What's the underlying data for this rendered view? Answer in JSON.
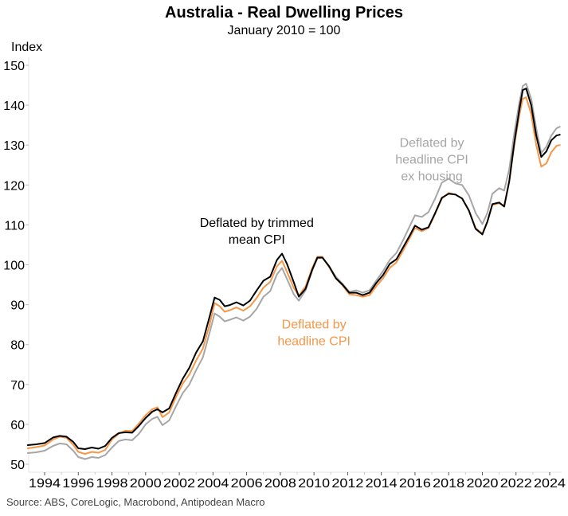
{
  "chart_data": {
    "type": "line",
    "title": "Australia - Real Dwelling Prices",
    "subtitle": "January 2010 = 100",
    "ylabel": "Index",
    "xlabel": "",
    "source": "Source: ABS, CoreLogic, Macrobond, Antipodean Macro",
    "xlim": [
      1993.0,
      2024.7
    ],
    "ylim": [
      48,
      150
    ],
    "yticks": [
      50,
      60,
      70,
      80,
      90,
      100,
      110,
      120,
      130,
      140,
      150
    ],
    "xticks": [
      1994,
      1996,
      1998,
      2000,
      2002,
      2004,
      2006,
      2008,
      2010,
      2012,
      2014,
      2016,
      2018,
      2020,
      2022,
      2024
    ],
    "grid": false,
    "legend": "inline annotations",
    "series": [
      {
        "name": "Deflated by headline CPI ex housing",
        "color": "#a6a6a6",
        "annotation": {
          "lines": [
            "Deflated by",
            "headline CPI",
            "ex housing"
          ],
          "at": [
            2017.0,
            129.5
          ]
        },
        "points": [
          [
            1993.0,
            52.8
          ],
          [
            1993.5,
            53.0
          ],
          [
            1994.0,
            53.4
          ],
          [
            1994.5,
            54.6
          ],
          [
            1994.9,
            55.2
          ],
          [
            1995.3,
            55.0
          ],
          [
            1995.7,
            53.4
          ],
          [
            1996.0,
            51.8
          ],
          [
            1996.4,
            51.3
          ],
          [
            1996.8,
            51.8
          ],
          [
            1997.2,
            51.6
          ],
          [
            1997.6,
            52.3
          ],
          [
            1998.0,
            54.2
          ],
          [
            1998.4,
            55.8
          ],
          [
            1998.8,
            56.2
          ],
          [
            1999.2,
            56.0
          ],
          [
            1999.6,
            57.6
          ],
          [
            2000.0,
            60.0
          ],
          [
            2000.4,
            61.4
          ],
          [
            2000.7,
            61.9
          ],
          [
            2001.0,
            59.8
          ],
          [
            2001.4,
            61.0
          ],
          [
            2001.8,
            64.5
          ],
          [
            2002.2,
            67.8
          ],
          [
            2002.6,
            70.0
          ],
          [
            2003.0,
            73.6
          ],
          [
            2003.4,
            76.8
          ],
          [
            2003.8,
            83.0
          ],
          [
            2004.1,
            87.8
          ],
          [
            2004.4,
            87.0
          ],
          [
            2004.7,
            85.8
          ],
          [
            2005.0,
            86.2
          ],
          [
            2005.4,
            86.8
          ],
          [
            2005.8,
            86.0
          ],
          [
            2006.2,
            87.0
          ],
          [
            2006.6,
            89.0
          ],
          [
            2007.0,
            92.0
          ],
          [
            2007.4,
            93.4
          ],
          [
            2007.8,
            97.6
          ],
          [
            2008.1,
            99.2
          ],
          [
            2008.4,
            96.4
          ],
          [
            2008.8,
            92.6
          ],
          [
            2009.1,
            91.0
          ],
          [
            2009.5,
            93.6
          ],
          [
            2009.9,
            98.6
          ],
          [
            2010.2,
            101.6
          ],
          [
            2010.5,
            101.8
          ],
          [
            2010.9,
            99.6
          ],
          [
            2011.3,
            97.0
          ],
          [
            2011.7,
            95.2
          ],
          [
            2012.1,
            93.2
          ],
          [
            2012.5,
            93.6
          ],
          [
            2012.9,
            93.0
          ],
          [
            2013.3,
            93.6
          ],
          [
            2013.7,
            96.0
          ],
          [
            2014.1,
            98.4
          ],
          [
            2014.5,
            101.2
          ],
          [
            2014.9,
            103.0
          ],
          [
            2015.3,
            106.2
          ],
          [
            2015.7,
            109.8
          ],
          [
            2016.0,
            112.4
          ],
          [
            2016.4,
            112.0
          ],
          [
            2016.8,
            113.2
          ],
          [
            2017.2,
            116.6
          ],
          [
            2017.6,
            120.6
          ],
          [
            2018.0,
            121.6
          ],
          [
            2018.4,
            120.4
          ],
          [
            2018.8,
            120.0
          ],
          [
            2019.2,
            117.4
          ],
          [
            2019.6,
            113.0
          ],
          [
            2020.0,
            110.2
          ],
          [
            2020.3,
            113.0
          ],
          [
            2020.6,
            117.8
          ],
          [
            2021.0,
            119.2
          ],
          [
            2021.3,
            118.6
          ],
          [
            2021.6,
            124.0
          ],
          [
            2021.9,
            133.0
          ],
          [
            2022.2,
            140.8
          ],
          [
            2022.4,
            144.8
          ],
          [
            2022.6,
            145.4
          ],
          [
            2022.9,
            141.6
          ],
          [
            2023.2,
            134.2
          ],
          [
            2023.5,
            128.0
          ],
          [
            2023.8,
            129.6
          ],
          [
            2024.1,
            132.4
          ],
          [
            2024.4,
            134.2
          ],
          [
            2024.6,
            134.6
          ]
        ]
      },
      {
        "name": "Deflated by headline CPI",
        "color": "#f79646",
        "annotation": {
          "lines": [
            "Deflated by",
            "headline CPI"
          ],
          "at": [
            2010.0,
            84.0
          ]
        },
        "points": [
          [
            1993.0,
            54.0
          ],
          [
            1993.5,
            54.3
          ],
          [
            1994.0,
            54.7
          ],
          [
            1994.5,
            56.2
          ],
          [
            1994.9,
            56.9
          ],
          [
            1995.3,
            56.6
          ],
          [
            1995.7,
            54.9
          ],
          [
            1996.0,
            53.1
          ],
          [
            1996.4,
            52.6
          ],
          [
            1996.8,
            53.1
          ],
          [
            1997.2,
            52.9
          ],
          [
            1997.6,
            53.6
          ],
          [
            1998.0,
            56.2
          ],
          [
            1998.4,
            57.6
          ],
          [
            1998.8,
            58.4
          ],
          [
            1999.2,
            58.3
          ],
          [
            1999.6,
            60.2
          ],
          [
            2000.0,
            62.3
          ],
          [
            2000.4,
            63.8
          ],
          [
            2000.7,
            64.3
          ],
          [
            2001.0,
            61.8
          ],
          [
            2001.4,
            63.0
          ],
          [
            2001.8,
            66.8
          ],
          [
            2002.2,
            70.2
          ],
          [
            2002.6,
            72.5
          ],
          [
            2003.0,
            76.0
          ],
          [
            2003.4,
            79.0
          ],
          [
            2003.8,
            85.0
          ],
          [
            2004.1,
            90.4
          ],
          [
            2004.4,
            89.6
          ],
          [
            2004.7,
            88.2
          ],
          [
            2005.0,
            88.6
          ],
          [
            2005.4,
            89.3
          ],
          [
            2005.8,
            88.5
          ],
          [
            2006.2,
            89.6
          ],
          [
            2006.6,
            91.7
          ],
          [
            2007.0,
            94.3
          ],
          [
            2007.4,
            95.7
          ],
          [
            2007.8,
            99.6
          ],
          [
            2008.1,
            101.0
          ],
          [
            2008.4,
            98.2
          ],
          [
            2008.8,
            94.2
          ],
          [
            2009.1,
            92.3
          ],
          [
            2009.5,
            94.6
          ],
          [
            2009.9,
            99.2
          ],
          [
            2010.2,
            102.0
          ],
          [
            2010.5,
            102.0
          ],
          [
            2010.9,
            99.4
          ],
          [
            2011.3,
            96.6
          ],
          [
            2011.7,
            94.8
          ],
          [
            2012.1,
            92.6
          ],
          [
            2012.5,
            92.4
          ],
          [
            2012.9,
            92.0
          ],
          [
            2013.3,
            92.4
          ],
          [
            2013.7,
            94.6
          ],
          [
            2014.1,
            96.6
          ],
          [
            2014.5,
            99.2
          ],
          [
            2014.9,
            100.6
          ],
          [
            2015.3,
            103.6
          ],
          [
            2015.7,
            106.8
          ],
          [
            2016.0,
            109.2
          ],
          [
            2016.4,
            108.4
          ],
          [
            2016.8,
            109.2
          ],
          [
            2017.2,
            112.8
          ],
          [
            2017.6,
            116.6
          ],
          [
            2018.0,
            118.0
          ],
          [
            2018.4,
            117.6
          ],
          [
            2018.8,
            116.6
          ],
          [
            2019.2,
            113.6
          ],
          [
            2019.6,
            109.2
          ],
          [
            2020.0,
            107.8
          ],
          [
            2020.3,
            110.8
          ],
          [
            2020.6,
            115.0
          ],
          [
            2021.0,
            115.4
          ],
          [
            2021.3,
            114.8
          ],
          [
            2021.6,
            121.0
          ],
          [
            2021.9,
            130.0
          ],
          [
            2022.2,
            137.6
          ],
          [
            2022.4,
            141.6
          ],
          [
            2022.6,
            142.0
          ],
          [
            2022.9,
            137.8
          ],
          [
            2023.2,
            130.0
          ],
          [
            2023.5,
            124.6
          ],
          [
            2023.8,
            125.4
          ],
          [
            2024.1,
            128.2
          ],
          [
            2024.4,
            129.8
          ],
          [
            2024.6,
            130.0
          ]
        ]
      },
      {
        "name": "Deflated by trimmed mean CPI",
        "color": "#000000",
        "annotation": {
          "lines": [
            "Deflated by trimmed",
            "mean CPI"
          ],
          "at": [
            2006.6,
            109.5
          ]
        },
        "points": [
          [
            1993.0,
            54.8
          ],
          [
            1993.5,
            55.0
          ],
          [
            1994.0,
            55.3
          ],
          [
            1994.5,
            56.7
          ],
          [
            1994.9,
            57.1
          ],
          [
            1995.3,
            56.9
          ],
          [
            1995.7,
            55.6
          ],
          [
            1996.0,
            54.0
          ],
          [
            1996.4,
            53.8
          ],
          [
            1996.8,
            54.2
          ],
          [
            1997.2,
            53.9
          ],
          [
            1997.6,
            54.6
          ],
          [
            1998.0,
            56.6
          ],
          [
            1998.4,
            57.8
          ],
          [
            1998.8,
            58.0
          ],
          [
            1999.2,
            57.9
          ],
          [
            1999.6,
            59.6
          ],
          [
            2000.0,
            61.6
          ],
          [
            2000.4,
            63.2
          ],
          [
            2000.7,
            63.8
          ],
          [
            2001.0,
            63.0
          ],
          [
            2001.4,
            64.0
          ],
          [
            2001.8,
            67.8
          ],
          [
            2002.2,
            71.4
          ],
          [
            2002.6,
            74.2
          ],
          [
            2003.0,
            78.0
          ],
          [
            2003.4,
            80.8
          ],
          [
            2003.8,
            87.0
          ],
          [
            2004.1,
            91.8
          ],
          [
            2004.4,
            91.2
          ],
          [
            2004.7,
            89.6
          ],
          [
            2005.0,
            89.9
          ],
          [
            2005.4,
            90.6
          ],
          [
            2005.8,
            89.8
          ],
          [
            2006.2,
            91.0
          ],
          [
            2006.6,
            93.6
          ],
          [
            2007.0,
            96.0
          ],
          [
            2007.4,
            97.0
          ],
          [
            2007.8,
            101.2
          ],
          [
            2008.1,
            102.8
          ],
          [
            2008.4,
            100.2
          ],
          [
            2008.8,
            95.6
          ],
          [
            2009.1,
            92.0
          ],
          [
            2009.5,
            94.0
          ],
          [
            2009.9,
            98.8
          ],
          [
            2010.2,
            101.8
          ],
          [
            2010.5,
            101.8
          ],
          [
            2010.9,
            99.6
          ],
          [
            2011.3,
            96.6
          ],
          [
            2011.7,
            95.0
          ],
          [
            2012.1,
            93.0
          ],
          [
            2012.5,
            93.0
          ],
          [
            2012.9,
            92.4
          ],
          [
            2013.3,
            93.0
          ],
          [
            2013.7,
            95.4
          ],
          [
            2014.1,
            97.4
          ],
          [
            2014.5,
            100.2
          ],
          [
            2014.9,
            101.4
          ],
          [
            2015.3,
            104.4
          ],
          [
            2015.7,
            107.4
          ],
          [
            2016.0,
            109.8
          ],
          [
            2016.4,
            108.8
          ],
          [
            2016.8,
            109.4
          ],
          [
            2017.2,
            113.0
          ],
          [
            2017.6,
            116.8
          ],
          [
            2018.0,
            117.8
          ],
          [
            2018.4,
            117.6
          ],
          [
            2018.8,
            116.6
          ],
          [
            2019.2,
            113.6
          ],
          [
            2019.6,
            109.0
          ],
          [
            2020.0,
            107.6
          ],
          [
            2020.3,
            110.8
          ],
          [
            2020.6,
            115.2
          ],
          [
            2021.0,
            115.6
          ],
          [
            2021.3,
            114.6
          ],
          [
            2021.6,
            121.0
          ],
          [
            2021.9,
            130.6
          ],
          [
            2022.2,
            139.0
          ],
          [
            2022.4,
            143.8
          ],
          [
            2022.6,
            144.2
          ],
          [
            2022.9,
            140.0
          ],
          [
            2023.2,
            132.4
          ],
          [
            2023.5,
            127.0
          ],
          [
            2023.8,
            128.4
          ],
          [
            2024.1,
            131.2
          ],
          [
            2024.4,
            132.4
          ],
          [
            2024.6,
            132.6
          ]
        ]
      }
    ]
  }
}
